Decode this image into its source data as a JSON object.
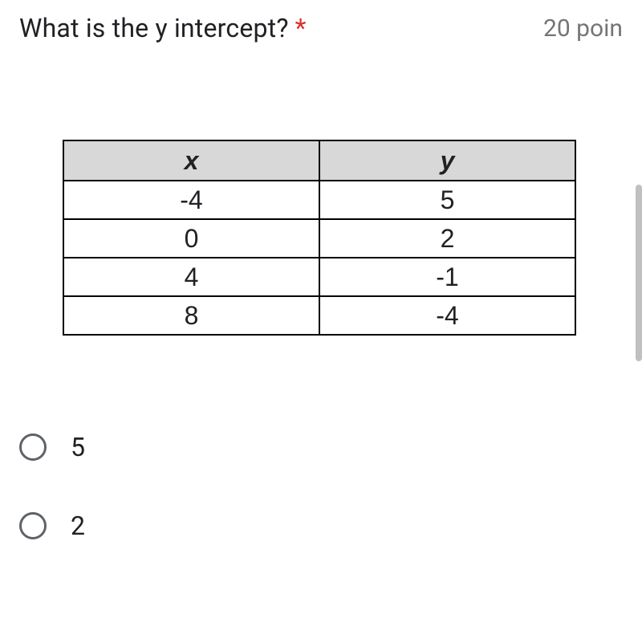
{
  "question": {
    "text": "What is the y intercept?",
    "required_mark": "*",
    "points_label": "20 poin"
  },
  "table": {
    "header_bg": "#d8d8d8",
    "border_color": "#000000",
    "columns": [
      "x",
      "y"
    ],
    "rows": [
      [
        "-4",
        "5"
      ],
      [
        "0",
        "2"
      ],
      [
        "4",
        "-1"
      ],
      [
        "8",
        "-4"
      ]
    ],
    "cell_fontsize": 32,
    "header_fontstyle": "italic-bold"
  },
  "options": [
    {
      "label": "5",
      "selected": false
    },
    {
      "label": "2",
      "selected": false
    }
  ],
  "colors": {
    "text": "#202124",
    "muted": "#757575",
    "required": "#d93025",
    "radio_border": "#5f6368",
    "scrollbar": "#c0c0c0",
    "background": "#ffffff"
  }
}
